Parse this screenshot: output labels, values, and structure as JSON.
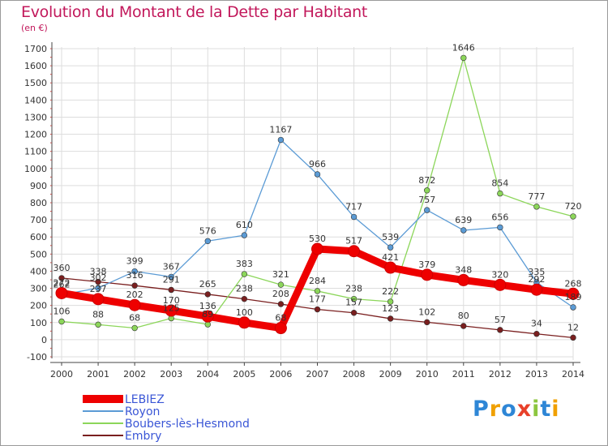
{
  "title": "Evolution du Montant de la Dette par Habitant",
  "subtitle": "(en €)",
  "colors": {
    "title": "#c2185b",
    "grid": "#dddddd",
    "axis": "#444444",
    "tick_dot": "#c0504d",
    "legend_text": "#3a56d6"
  },
  "logo": {
    "text": "Proxiti",
    "letters": [
      {
        "ch": "P",
        "color": "#2e86d6"
      },
      {
        "ch": "r",
        "color": "#f0a000"
      },
      {
        "ch": "o",
        "color": "#2e86d6"
      },
      {
        "ch": "x",
        "color": "#e8402a"
      },
      {
        "ch": "i",
        "color": "#8cc63f"
      },
      {
        "ch": "t",
        "color": "#2e86d6"
      },
      {
        "ch": "i",
        "color": "#f0a000"
      }
    ]
  },
  "chart_data": {
    "type": "line",
    "title": "Evolution du Montant de la Dette par Habitant",
    "subtitle": "(en €)",
    "xlabel": "",
    "ylabel": "",
    "x": [
      2000,
      2001,
      2002,
      2003,
      2004,
      2005,
      2006,
      2007,
      2008,
      2009,
      2010,
      2011,
      2012,
      2013,
      2014
    ],
    "ylim": [
      -100,
      1700
    ],
    "yticks": [
      -100,
      0,
      100,
      200,
      300,
      400,
      500,
      600,
      700,
      800,
      900,
      1000,
      1100,
      1200,
      1300,
      1400,
      1500,
      1600,
      1700
    ],
    "grid": true,
    "legend_position": "bottom-left",
    "series": [
      {
        "name": "Embry",
        "color": "#7a1f1f",
        "values": [
          360,
          338,
          316,
          291,
          265,
          238,
          208,
          177,
          157,
          123,
          102,
          80,
          57,
          34,
          12
        ]
      },
      {
        "name": "Boubers-lès-Hesmond",
        "color": "#8cd65a",
        "values": [
          106,
          88,
          68,
          125,
          89,
          383,
          321,
          284,
          238,
          222,
          872,
          1646,
          854,
          777,
          720
        ]
      },
      {
        "name": "Royon",
        "color": "#5b9bd5",
        "values": [
          262,
          302,
          399,
          367,
          576,
          610,
          1167,
          966,
          717,
          539,
          757,
          639,
          656,
          335,
          189
        ]
      },
      {
        "name": "LEBIEZ",
        "color": "#ee0000",
        "values": [
          272,
          237,
          202,
          170,
          136,
          100,
          68,
          530,
          517,
          421,
          379,
          348,
          320,
          292,
          268
        ]
      }
    ]
  },
  "legend": {
    "items": [
      {
        "name": "LEBIEZ",
        "color": "#ee0000",
        "width": 10
      },
      {
        "name": "Royon",
        "color": "#5b9bd5",
        "width": 2
      },
      {
        "name": "Boubers-lès-Hesmond",
        "color": "#8cd65a",
        "width": 2
      },
      {
        "name": "Embry",
        "color": "#7a1f1f",
        "width": 2
      }
    ]
  }
}
